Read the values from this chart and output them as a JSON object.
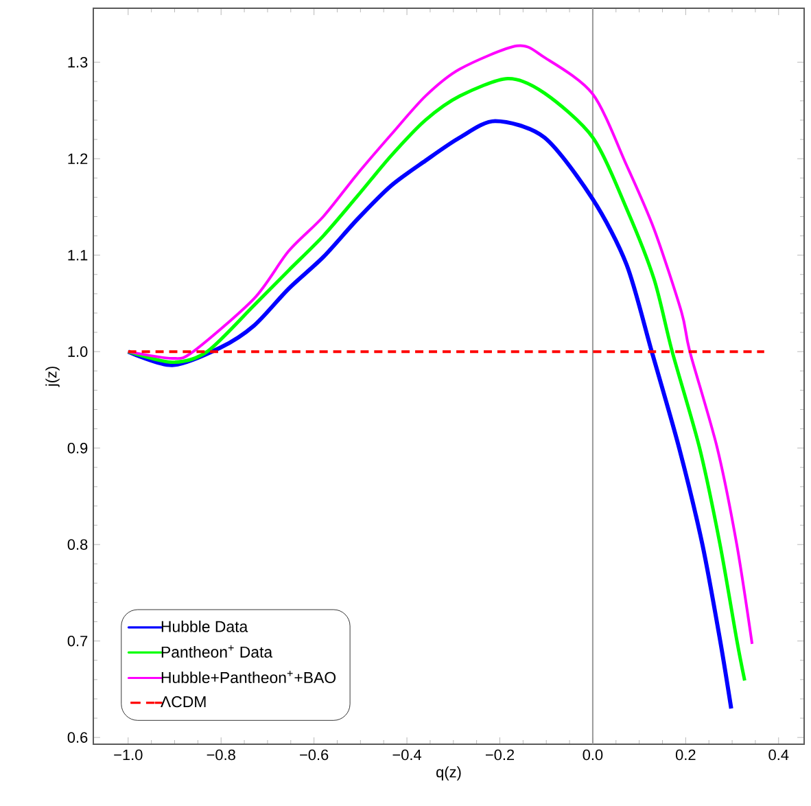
{
  "chart_data": {
    "type": "line",
    "xlabel": "q(z)",
    "ylabel": "j(z)",
    "xlim": [
      -1.075,
      0.455
    ],
    "ylim": [
      0.593,
      1.356
    ],
    "xticks": [
      {
        "value": -1.0,
        "label": "−1.0"
      },
      {
        "value": -0.8,
        "label": "−0.8"
      },
      {
        "value": -0.6,
        "label": "−0.6"
      },
      {
        "value": -0.4,
        "label": "−0.4"
      },
      {
        "value": -0.2,
        "label": "−0.2"
      },
      {
        "value": 0.0,
        "label": "0.0"
      },
      {
        "value": 0.2,
        "label": "0.2"
      },
      {
        "value": 0.4,
        "label": "0.4"
      }
    ],
    "yticks": [
      {
        "value": 0.6,
        "label": "0.6"
      },
      {
        "value": 0.7,
        "label": "0.7"
      },
      {
        "value": 0.8,
        "label": "0.8"
      },
      {
        "value": 0.9,
        "label": "0.9"
      },
      {
        "value": 1.0,
        "label": "1.0"
      },
      {
        "value": 1.1,
        "label": "1.1"
      },
      {
        "value": 1.2,
        "label": "1.2"
      },
      {
        "value": 1.3,
        "label": "1.3"
      }
    ],
    "grid": false,
    "legend": "bottom left",
    "marker": "none",
    "ref_lines": [
      {
        "axis": "x",
        "value": 0,
        "color": "#999999"
      }
    ],
    "series": [
      {
        "name": "Hubble Data",
        "color": "#0000ff",
        "line_style": "solid",
        "x": [
          -1.0,
          -0.905,
          -0.802,
          -0.729,
          -0.655,
          -0.58,
          -0.507,
          -0.434,
          -0.36,
          -0.286,
          -0.21,
          -0.104,
          0.0,
          0.073,
          0.127,
          0.186,
          0.236,
          0.274,
          0.298
        ],
        "values": [
          1.0,
          0.986,
          1.004,
          1.027,
          1.065,
          1.098,
          1.137,
          1.172,
          1.198,
          1.222,
          1.239,
          1.222,
          1.158,
          1.09,
          1.0,
          0.9,
          0.8,
          0.701,
          0.63
        ]
      },
      {
        "name": "Pantheon$^{+}$ Data",
        "color": "#00ff00",
        "line_style": "solid",
        "x": [
          -1.0,
          -0.905,
          -0.83,
          -0.729,
          -0.655,
          -0.58,
          -0.507,
          -0.434,
          -0.36,
          -0.286,
          -0.183,
          -0.104,
          0.0,
          0.073,
          0.132,
          0.171,
          0.23,
          0.274,
          0.31,
          0.327
        ],
        "values": [
          1.0,
          0.989,
          1.0,
          1.048,
          1.084,
          1.12,
          1.161,
          1.203,
          1.24,
          1.265,
          1.283,
          1.268,
          1.222,
          1.148,
          1.075,
          1.0,
          0.9,
          0.8,
          0.701,
          0.659
        ]
      },
      {
        "name": "Hubble+Pantheon$^{+}$+BAO",
        "color": "#ff00ff",
        "line_style": "solid",
        "x": [
          -1.0,
          -0.905,
          -0.86,
          -0.729,
          -0.655,
          -0.58,
          -0.507,
          -0.434,
          -0.36,
          -0.286,
          -0.163,
          -0.104,
          0.0,
          0.073,
          0.132,
          0.191,
          0.209,
          0.268,
          0.31,
          0.343
        ],
        "values": [
          1.0,
          0.993,
          1.0,
          1.055,
          1.104,
          1.14,
          1.184,
          1.225,
          1.265,
          1.293,
          1.317,
          1.305,
          1.267,
          1.193,
          1.127,
          1.041,
          1.0,
          0.9,
          0.8,
          0.697
        ]
      },
      {
        "name": "ΛCDM",
        "color": "#ff0000",
        "line_style": "dashed",
        "x": [
          -1.0,
          0.369
        ],
        "values": [
          1.0,
          1.0
        ]
      }
    ]
  }
}
